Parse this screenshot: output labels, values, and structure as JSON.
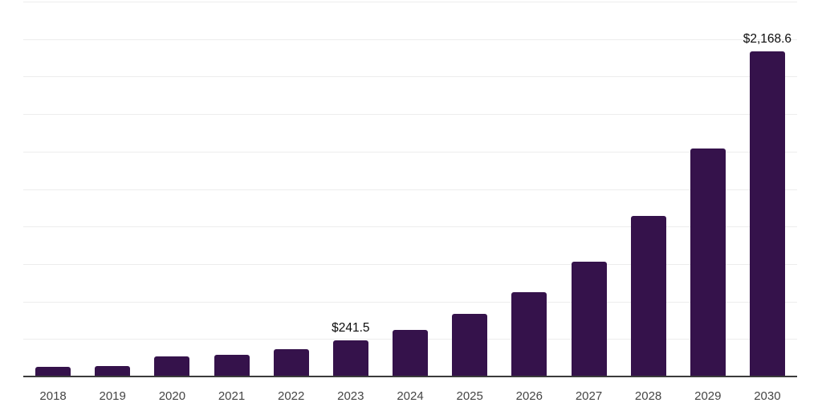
{
  "chart_data": {
    "type": "bar",
    "title": "",
    "xlabel": "",
    "ylabel": "",
    "categories": [
      "2018",
      "2019",
      "2020",
      "2021",
      "2022",
      "2023",
      "2024",
      "2025",
      "2026",
      "2027",
      "2028",
      "2029",
      "2030"
    ],
    "values": [
      64,
      70,
      134,
      145,
      182,
      241.5,
      310,
      418,
      562,
      765,
      1071,
      1520,
      2168.6
    ],
    "data_labels": [
      {
        "index": 5,
        "text": "$241.5"
      },
      {
        "index": 12,
        "text": "$2,168.6"
      }
    ],
    "ylim": [
      0,
      2500
    ],
    "gridline_step": 250,
    "grid": "horizontal",
    "legend": "none",
    "y_tick_labels_visible": false
  },
  "colors": {
    "bar": "#35124B",
    "gridline": "#EDEDED",
    "axis": "#3B3B3B",
    "x_label": "#454545",
    "value_label": "#0D0D0D",
    "background": "#FFFFFF"
  }
}
